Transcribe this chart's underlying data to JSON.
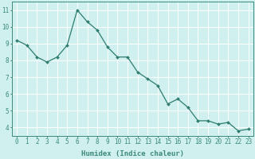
{
  "x": [
    0,
    1,
    2,
    3,
    4,
    5,
    6,
    7,
    8,
    9,
    10,
    11,
    12,
    13,
    14,
    15,
    16,
    17,
    18,
    19,
    20,
    21,
    22,
    23
  ],
  "y": [
    9.2,
    8.9,
    8.2,
    7.9,
    8.2,
    8.9,
    11.0,
    10.3,
    9.8,
    8.8,
    8.2,
    8.2,
    7.3,
    6.9,
    6.5,
    5.4,
    5.7,
    5.2,
    4.4,
    4.4,
    4.2,
    4.3,
    3.8,
    3.9
  ],
  "line_color": "#2e7d6e",
  "marker": "D",
  "marker_size": 2.0,
  "linewidth": 0.9,
  "xlabel": "Humidex (Indice chaleur)",
  "xlabel_fontsize": 6.5,
  "xlabel_bold": true,
  "xtick_labels": [
    "0",
    "1",
    "2",
    "3",
    "4",
    "5",
    "6",
    "7",
    "8",
    "9",
    "10",
    "11",
    "12",
    "13",
    "14",
    "15",
    "16",
    "17",
    "18",
    "19",
    "20",
    "21",
    "22",
    "23"
  ],
  "ytick_labels": [
    "4",
    "5",
    "6",
    "7",
    "8",
    "9",
    "10",
    "11"
  ],
  "ylim": [
    3.5,
    11.5
  ],
  "xlim": [
    -0.5,
    23.5
  ],
  "background_color": "#cff0ee",
  "grid_color": "#ffffff",
  "grid_linewidth": 0.7,
  "tick_fontsize": 5.5,
  "spine_color": "#3d8a7a"
}
